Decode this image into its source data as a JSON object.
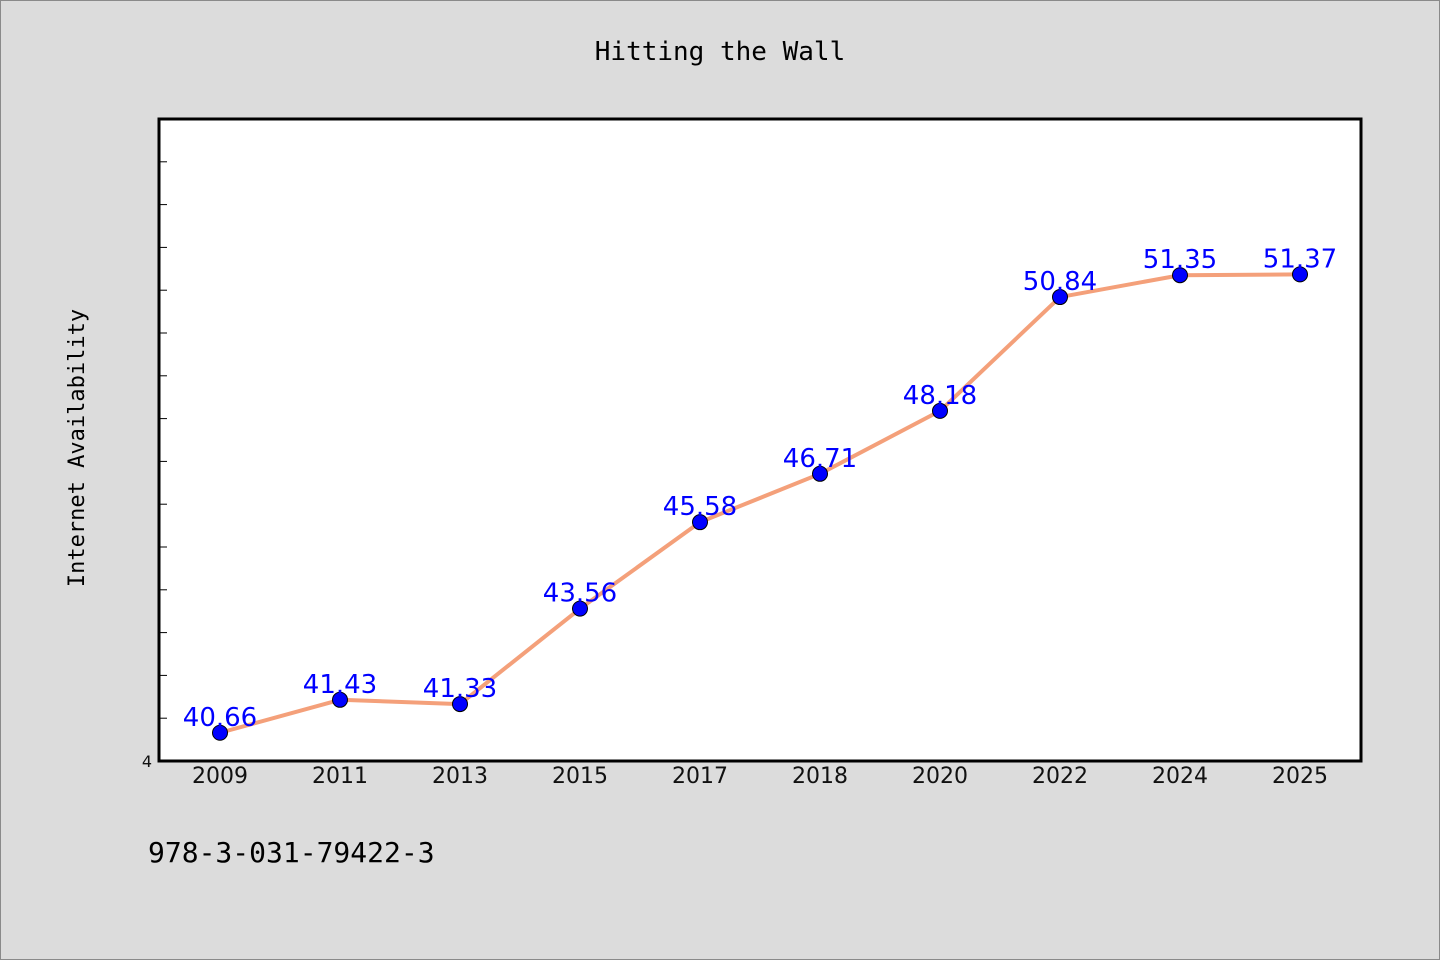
{
  "chart_data": {
    "type": "line",
    "title": "Hitting the Wall",
    "xlabel": "",
    "ylabel": "Internet Availability",
    "categories": [
      "2009",
      "2011",
      "2013",
      "2015",
      "2017",
      "2018",
      "2020",
      "2022",
      "2024",
      "2025"
    ],
    "series": [
      {
        "values": [
          40.66,
          41.43,
          41.33,
          43.56,
          45.58,
          46.71,
          48.18,
          50.84,
          51.35,
          51.37
        ]
      }
    ],
    "data_labels": [
      "40.66",
      "41.43",
      "41.33",
      "43.56",
      "45.58",
      "46.71",
      "48.18",
      "50.84",
      "51.35",
      "51.37"
    ],
    "ylim": [
      40,
      55
    ],
    "y_tick_labels": [
      "4"
    ],
    "grid": false,
    "legend": "none",
    "colors": {
      "line": "#f4a07a",
      "marker": "#0000ff",
      "data_label": "#0000ff",
      "plot_background": "#ffffff",
      "page_background": "#dcdcdc"
    }
  },
  "footer": {
    "isbn": "978-3-031-79422-3"
  }
}
